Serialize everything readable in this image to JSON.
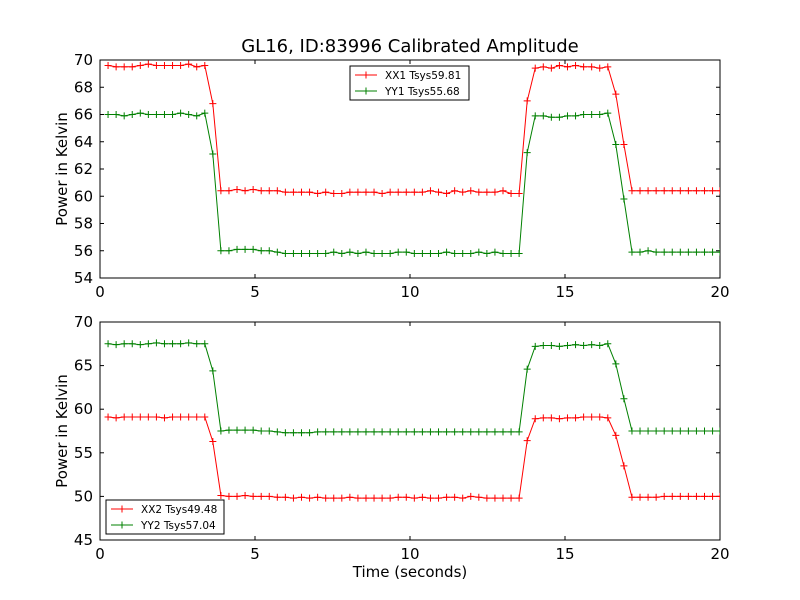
{
  "title": "GL16, ID:83996 Calibrated Amplitude",
  "chart_data": [
    {
      "type": "line",
      "ylabel": "Power in Kelvin",
      "xlabel": "",
      "xlim": [
        0,
        20
      ],
      "ylim": [
        54,
        70
      ],
      "xticks": [
        "0",
        "5",
        "10",
        "15",
        "20"
      ],
      "yticks": [
        "54",
        "56",
        "58",
        "60",
        "62",
        "64",
        "66",
        "68",
        "70"
      ],
      "legend_position": "top-center",
      "series": [
        {
          "name": "XX1 Tsys59.81",
          "color": "#ff0000",
          "x": [
            0.26,
            0.52,
            0.78,
            1.04,
            1.3,
            1.56,
            1.82,
            2.08,
            2.34,
            2.6,
            2.86,
            3.12,
            3.38,
            3.64,
            3.9,
            4.16,
            4.42,
            4.68,
            4.94,
            5.2,
            5.46,
            5.72,
            5.98,
            6.24,
            6.5,
            6.76,
            7.02,
            7.28,
            7.54,
            7.8,
            8.06,
            8.32,
            8.58,
            8.84,
            9.1,
            9.36,
            9.62,
            9.88,
            10.14,
            10.4,
            10.66,
            10.92,
            11.18,
            11.44,
            11.7,
            11.96,
            12.22,
            12.48,
            12.74,
            13.0,
            13.26,
            13.52,
            13.78,
            14.04,
            14.3,
            14.56,
            14.82,
            15.08,
            15.34,
            15.6,
            15.86,
            16.12,
            16.38,
            16.64,
            16.9,
            17.16,
            17.42,
            17.68,
            17.94,
            18.2,
            18.46,
            18.72,
            18.98,
            19.24,
            19.5,
            19.76,
            20.0
          ],
          "y": [
            69.6,
            69.5,
            69.5,
            69.5,
            69.6,
            69.7,
            69.6,
            69.6,
            69.6,
            69.6,
            69.7,
            69.5,
            69.6,
            66.8,
            60.4,
            60.4,
            60.5,
            60.4,
            60.5,
            60.4,
            60.4,
            60.4,
            60.3,
            60.3,
            60.3,
            60.3,
            60.2,
            60.3,
            60.2,
            60.2,
            60.3,
            60.3,
            60.3,
            60.3,
            60.2,
            60.3,
            60.3,
            60.3,
            60.3,
            60.3,
            60.4,
            60.3,
            60.2,
            60.4,
            60.3,
            60.4,
            60.3,
            60.3,
            60.3,
            60.4,
            60.2,
            60.2,
            67.0,
            69.4,
            69.5,
            69.4,
            69.6,
            69.5,
            69.6,
            69.5,
            69.5,
            69.4,
            69.5,
            67.5,
            63.8,
            60.4,
            60.4,
            60.4,
            60.4,
            60.4,
            60.4,
            60.4,
            60.4,
            60.4,
            60.4,
            60.4,
            60.4
          ]
        },
        {
          "name": "YY1 Tsys55.68",
          "color": "#008000",
          "x": [
            0.26,
            0.52,
            0.78,
            1.04,
            1.3,
            1.56,
            1.82,
            2.08,
            2.34,
            2.6,
            2.86,
            3.12,
            3.38,
            3.64,
            3.9,
            4.16,
            4.42,
            4.68,
            4.94,
            5.2,
            5.46,
            5.72,
            5.98,
            6.24,
            6.5,
            6.76,
            7.02,
            7.28,
            7.54,
            7.8,
            8.06,
            8.32,
            8.58,
            8.84,
            9.1,
            9.36,
            9.62,
            9.88,
            10.14,
            10.4,
            10.66,
            10.92,
            11.18,
            11.44,
            11.7,
            11.96,
            12.22,
            12.48,
            12.74,
            13.0,
            13.26,
            13.52,
            13.78,
            14.04,
            14.3,
            14.56,
            14.82,
            15.08,
            15.34,
            15.6,
            15.86,
            16.12,
            16.38,
            16.64,
            16.9,
            17.16,
            17.42,
            17.68,
            17.94,
            18.2,
            18.46,
            18.72,
            18.98,
            19.24,
            19.5,
            19.76,
            20.0
          ],
          "y": [
            66.0,
            66.0,
            65.9,
            66.0,
            66.1,
            66.0,
            66.0,
            66.0,
            66.0,
            66.1,
            66.0,
            65.9,
            66.1,
            63.1,
            56.0,
            56.0,
            56.1,
            56.1,
            56.1,
            56.0,
            56.0,
            55.9,
            55.8,
            55.8,
            55.8,
            55.8,
            55.8,
            55.8,
            55.9,
            55.8,
            55.9,
            55.8,
            55.9,
            55.8,
            55.8,
            55.8,
            55.9,
            55.9,
            55.8,
            55.8,
            55.8,
            55.8,
            55.9,
            55.8,
            55.8,
            55.8,
            55.9,
            55.8,
            55.9,
            55.8,
            55.8,
            55.8,
            63.2,
            65.9,
            65.9,
            65.8,
            65.8,
            65.9,
            65.9,
            66.0,
            66.0,
            66.0,
            66.1,
            63.8,
            59.8,
            55.9,
            55.9,
            56.0,
            55.9,
            55.9,
            55.9,
            55.9,
            55.9,
            55.9,
            55.9,
            55.9,
            55.9
          ]
        }
      ]
    },
    {
      "type": "line",
      "ylabel": "Power in Kelvin",
      "xlabel": "Time (seconds)",
      "xlim": [
        0,
        20
      ],
      "ylim": [
        45,
        70
      ],
      "xticks": [
        "0",
        "5",
        "10",
        "15",
        "20"
      ],
      "yticks": [
        "45",
        "50",
        "55",
        "60",
        "65",
        "70"
      ],
      "legend_position": "bottom-left",
      "series": [
        {
          "name": "XX2 Tsys49.48",
          "color": "#ff0000",
          "x": [
            0.26,
            0.52,
            0.78,
            1.04,
            1.3,
            1.56,
            1.82,
            2.08,
            2.34,
            2.6,
            2.86,
            3.12,
            3.38,
            3.64,
            3.9,
            4.16,
            4.42,
            4.68,
            4.94,
            5.2,
            5.46,
            5.72,
            5.98,
            6.24,
            6.5,
            6.76,
            7.02,
            7.28,
            7.54,
            7.8,
            8.06,
            8.32,
            8.58,
            8.84,
            9.1,
            9.36,
            9.62,
            9.88,
            10.14,
            10.4,
            10.66,
            10.92,
            11.18,
            11.44,
            11.7,
            11.96,
            12.22,
            12.48,
            12.74,
            13.0,
            13.26,
            13.52,
            13.78,
            14.04,
            14.3,
            14.56,
            14.82,
            15.08,
            15.34,
            15.6,
            15.86,
            16.12,
            16.38,
            16.64,
            16.9,
            17.16,
            17.42,
            17.68,
            17.94,
            18.2,
            18.46,
            18.72,
            18.98,
            19.24,
            19.5,
            19.76,
            20.0
          ],
          "y": [
            59.1,
            59.0,
            59.1,
            59.1,
            59.1,
            59.1,
            59.1,
            59.0,
            59.1,
            59.1,
            59.1,
            59.1,
            59.1,
            56.3,
            50.1,
            50.0,
            50.0,
            50.1,
            50.0,
            50.0,
            50.0,
            49.9,
            49.9,
            49.8,
            49.9,
            49.8,
            49.9,
            49.8,
            49.8,
            49.8,
            49.9,
            49.8,
            49.8,
            49.8,
            49.8,
            49.8,
            49.9,
            49.9,
            49.8,
            49.9,
            49.8,
            49.8,
            49.9,
            49.9,
            49.8,
            50.0,
            49.9,
            49.8,
            49.8,
            49.8,
            49.8,
            49.8,
            56.4,
            58.9,
            59.0,
            59.0,
            58.9,
            59.0,
            59.0,
            59.1,
            59.1,
            59.1,
            59.0,
            57.0,
            53.5,
            49.9,
            49.9,
            49.9,
            49.9,
            50.0,
            50.0,
            50.0,
            50.0,
            50.0,
            50.0,
            50.0,
            50.0
          ]
        },
        {
          "name": "YY2 Tsys57.04",
          "color": "#008000",
          "x": [
            0.26,
            0.52,
            0.78,
            1.04,
            1.3,
            1.56,
            1.82,
            2.08,
            2.34,
            2.6,
            2.86,
            3.12,
            3.38,
            3.64,
            3.9,
            4.16,
            4.42,
            4.68,
            4.94,
            5.2,
            5.46,
            5.72,
            5.98,
            6.24,
            6.5,
            6.76,
            7.02,
            7.28,
            7.54,
            7.8,
            8.06,
            8.32,
            8.58,
            8.84,
            9.1,
            9.36,
            9.62,
            9.88,
            10.14,
            10.4,
            10.66,
            10.92,
            11.18,
            11.44,
            11.7,
            11.96,
            12.22,
            12.48,
            12.74,
            13.0,
            13.26,
            13.52,
            13.78,
            14.04,
            14.3,
            14.56,
            14.82,
            15.08,
            15.34,
            15.6,
            15.86,
            16.12,
            16.38,
            16.64,
            16.9,
            17.16,
            17.42,
            17.68,
            17.94,
            18.2,
            18.46,
            18.72,
            18.98,
            19.24,
            19.5,
            19.76,
            20.0
          ],
          "y": [
            67.5,
            67.4,
            67.5,
            67.5,
            67.4,
            67.5,
            67.6,
            67.5,
            67.5,
            67.5,
            67.6,
            67.5,
            67.5,
            64.4,
            57.5,
            57.6,
            57.6,
            57.6,
            57.6,
            57.5,
            57.5,
            57.4,
            57.3,
            57.3,
            57.3,
            57.3,
            57.4,
            57.4,
            57.4,
            57.4,
            57.4,
            57.4,
            57.4,
            57.4,
            57.4,
            57.4,
            57.4,
            57.4,
            57.4,
            57.4,
            57.4,
            57.4,
            57.4,
            57.4,
            57.4,
            57.4,
            57.4,
            57.4,
            57.4,
            57.4,
            57.4,
            57.4,
            64.6,
            67.2,
            67.3,
            67.3,
            67.2,
            67.3,
            67.4,
            67.3,
            67.4,
            67.3,
            67.5,
            65.2,
            61.2,
            57.5,
            57.5,
            57.5,
            57.5,
            57.5,
            57.5,
            57.5,
            57.5,
            57.5,
            57.5,
            57.5,
            57.5
          ]
        }
      ]
    }
  ]
}
